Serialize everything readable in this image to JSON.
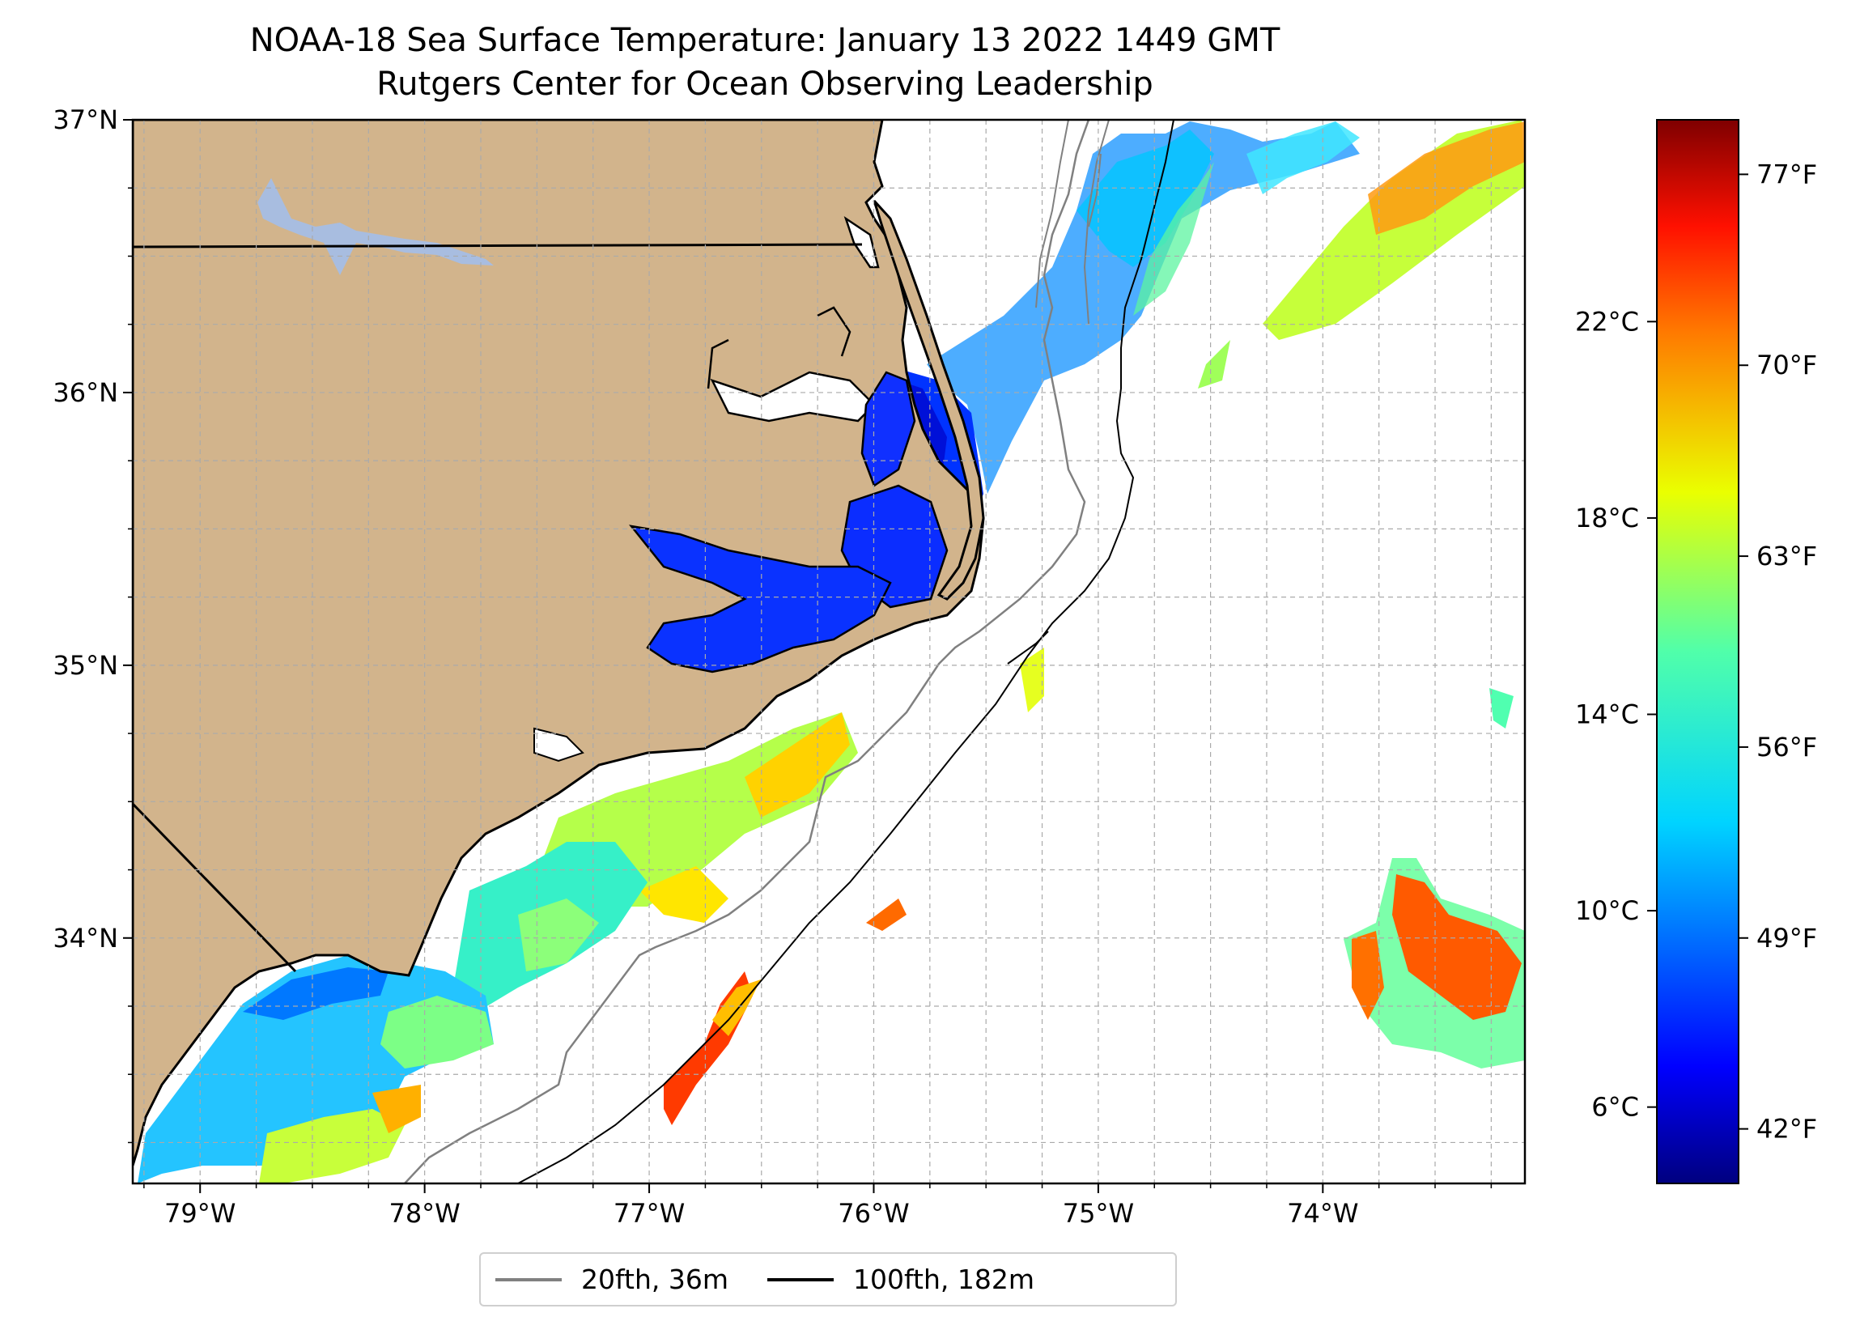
{
  "title": "NOAA-18 Sea Surface Temperature: January 13 2022 1449 GMT",
  "subtitle": "Rutgers Center for Ocean Observing Leadership",
  "map": {
    "lon_range": [
      -79.3,
      -73.1
    ],
    "lat_range": [
      33.1,
      37.0
    ],
    "lat_ticks": [
      {
        "value": 37,
        "label": "37°N"
      },
      {
        "value": 36,
        "label": "36°N"
      },
      {
        "value": 35,
        "label": "35°N"
      },
      {
        "value": 34,
        "label": "34°N"
      }
    ],
    "lon_ticks": [
      {
        "value": -79,
        "label": "79°W"
      },
      {
        "value": -78,
        "label": "78°W"
      },
      {
        "value": -77,
        "label": "77°W"
      },
      {
        "value": -76,
        "label": "76°W"
      },
      {
        "value": -75,
        "label": "75°W"
      },
      {
        "value": -74,
        "label": "74°W"
      }
    ],
    "gridlines": true,
    "land_color": "#d2b48c",
    "lake_color": "#a8bde0"
  },
  "colorbar": {
    "celsius_ticks": [
      {
        "value": 22,
        "label": "22°C"
      },
      {
        "value": 18,
        "label": "18°C"
      },
      {
        "value": 14,
        "label": "14°C"
      },
      {
        "value": 10,
        "label": "10°C"
      },
      {
        "value": 6,
        "label": "6°C"
      }
    ],
    "fahrenheit_ticks": [
      {
        "value": 77,
        "label": "77°F"
      },
      {
        "value": 70,
        "label": "70°F"
      },
      {
        "value": 63,
        "label": "63°F"
      },
      {
        "value": 56,
        "label": "56°F"
      },
      {
        "value": 49,
        "label": "49°F"
      },
      {
        "value": 42,
        "label": "42°F"
      }
    ],
    "range_f": [
      40,
      79
    ],
    "colormap": "jet"
  },
  "legend": {
    "entries": [
      {
        "label": "20fth, 36m",
        "color": "#808080"
      },
      {
        "label": "100fth, 182m",
        "color": "#000000"
      }
    ]
  }
}
